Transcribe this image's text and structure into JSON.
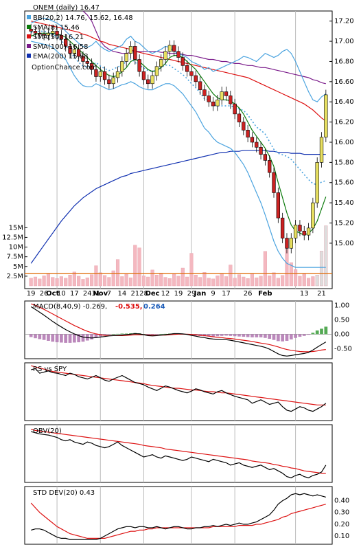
{
  "colors": {
    "bb": "#4aa3df",
    "sma8": "#0a7a0a",
    "sma50": "#dd1111",
    "sma100": "#7a1a8a",
    "ema200": "#1030b0",
    "price_down": "#cc2222",
    "price_up": "#e8e060",
    "volume": "#f4b8c0",
    "macd_neg": "#dd1111",
    "macd_pos": "#1a5bb8"
  },
  "chart_data": [
    {
      "type": "line",
      "title": "ONEM (daily) 16.47",
      "watermark": "OptionChance.com",
      "legend": [
        {
          "name": "BB(20,2) 14.76, 15.62, 16.48",
          "color": "#4aa3df"
        },
        {
          "name": "SMA(8) 15.46",
          "color": "#0a7a0a"
        },
        {
          "name": "SMA(50) 16.21",
          "color": "#dd1111"
        },
        {
          "name": "SMA(100) 16.58",
          "color": "#7a1a8a"
        },
        {
          "name": "EMA(200) 15.88",
          "color": "#1030b0"
        }
      ],
      "ylim": [
        14.55,
        17.3
      ],
      "yticks": [
        "17.20",
        "17.00",
        "16.80",
        "16.60",
        "16.40",
        "16.20",
        "16.00",
        "15.80",
        "15.60",
        "15.40",
        "15.20",
        "15.00"
      ],
      "xticks": [
        "19",
        "26",
        "Oct",
        "10",
        "17",
        "24",
        "31",
        "Nov",
        "7",
        "14",
        "21",
        "28",
        "Dec",
        "12",
        "19",
        "29",
        "Jan",
        "9",
        "17",
        "26",
        "Feb",
        "13",
        "21"
      ],
      "volume_ticks": [
        "15M",
        "12.5M",
        "10M",
        "7.5M",
        "5M",
        "2.5M"
      ],
      "close": [
        17.1,
        17.08,
        17.07,
        17.06,
        17.08,
        17.1,
        17.06,
        17.02,
        16.95,
        16.88,
        16.92,
        16.85,
        16.8,
        16.78,
        16.72,
        16.65,
        16.7,
        16.62,
        16.58,
        16.64,
        16.7,
        16.8,
        16.88,
        16.95,
        16.82,
        16.7,
        16.62,
        16.58,
        16.66,
        16.75,
        16.82,
        16.9,
        16.96,
        16.9,
        16.84,
        16.76,
        16.7,
        16.66,
        16.6,
        16.52,
        16.46,
        16.4,
        16.36,
        16.42,
        16.5,
        16.46,
        16.38,
        16.28,
        16.2,
        16.12,
        16.05,
        16.0,
        15.95,
        15.88,
        15.82,
        15.7,
        15.5,
        15.25,
        15.05,
        14.95,
        15.05,
        15.18,
        15.12,
        15.08,
        15.15,
        15.4,
        15.8,
        16.05,
        16.47
      ],
      "bb_upper": [
        17.18,
        17.2,
        17.22,
        17.23,
        17.22,
        17.2,
        17.18,
        17.15,
        17.1,
        17.06,
        17.02,
        16.98,
        16.95,
        16.94,
        16.96,
        17.0,
        16.95,
        16.92,
        16.9,
        16.92,
        16.94,
        16.96,
        17.02,
        17.05,
        17.0,
        16.98,
        16.94,
        16.9,
        16.88,
        16.9,
        16.92,
        16.95,
        16.94,
        16.9,
        16.88,
        16.86,
        16.84,
        16.8,
        16.78,
        16.76,
        16.72,
        16.74,
        16.7,
        16.72,
        16.74,
        16.76,
        16.78,
        16.8,
        16.82,
        16.85,
        16.84,
        16.82,
        16.8,
        16.84,
        16.88,
        16.86,
        16.84,
        16.86,
        16.9,
        16.92,
        16.88,
        16.8,
        16.7,
        16.6,
        16.5,
        16.42,
        16.4,
        16.45,
        16.48
      ],
      "bb_lower": [
        17.0,
        16.99,
        16.98,
        16.97,
        16.96,
        16.94,
        16.9,
        16.86,
        16.82,
        16.74,
        16.66,
        16.6,
        16.56,
        16.55,
        16.55,
        16.58,
        16.56,
        16.54,
        16.52,
        16.53,
        16.55,
        16.57,
        16.58,
        16.6,
        16.58,
        16.55,
        16.53,
        16.52,
        16.52,
        16.54,
        16.56,
        16.58,
        16.58,
        16.56,
        16.52,
        16.48,
        16.42,
        16.36,
        16.3,
        16.22,
        16.14,
        16.1,
        16.04,
        16.0,
        15.98,
        15.96,
        15.94,
        15.9,
        15.84,
        15.78,
        15.7,
        15.6,
        15.5,
        15.4,
        15.28,
        15.15,
        15.02,
        14.92,
        14.85,
        14.8,
        14.78,
        14.76,
        14.76,
        14.76,
        14.76,
        14.76,
        14.76,
        14.76,
        14.76
      ],
      "sma8": [
        17.05,
        17.07,
        17.08,
        17.08,
        17.08,
        17.08,
        17.07,
        17.06,
        17.04,
        17.0,
        16.96,
        16.92,
        16.88,
        16.84,
        16.8,
        16.76,
        16.72,
        16.69,
        16.66,
        16.65,
        16.66,
        16.7,
        16.74,
        16.8,
        16.82,
        16.8,
        16.76,
        16.72,
        16.7,
        16.71,
        16.74,
        16.78,
        16.84,
        16.86,
        16.86,
        16.84,
        16.8,
        16.76,
        16.72,
        16.66,
        16.6,
        16.54,
        16.48,
        16.44,
        16.42,
        16.42,
        16.41,
        16.38,
        16.34,
        16.28,
        16.2,
        16.12,
        16.06,
        16.0,
        15.94,
        15.86,
        15.76,
        15.6,
        15.45,
        15.3,
        15.18,
        15.12,
        15.1,
        15.08,
        15.1,
        15.14,
        15.22,
        15.34,
        15.46
      ],
      "sma50": [
        17.2,
        17.19,
        17.18,
        17.17,
        17.16,
        17.15,
        17.14,
        17.13,
        17.12,
        17.11,
        17.1,
        17.09,
        17.07,
        17.06,
        17.04,
        17.02,
        17.0,
        16.99,
        16.97,
        16.96,
        16.95,
        16.94,
        16.93,
        16.92,
        16.9,
        16.89,
        16.88,
        16.87,
        16.86,
        16.85,
        16.84,
        16.83,
        16.82,
        16.81,
        16.8,
        16.79,
        16.78,
        16.77,
        16.76,
        16.75,
        16.74,
        16.73,
        16.72,
        16.71,
        16.7,
        16.69,
        16.68,
        16.67,
        16.66,
        16.65,
        16.64,
        16.62,
        16.6,
        16.58,
        16.56,
        16.54,
        16.52,
        16.5,
        16.48,
        16.46,
        16.44,
        16.42,
        16.4,
        16.38,
        16.35,
        16.32,
        16.28,
        16.24,
        16.21
      ],
      "sma100": [
        null,
        null,
        null,
        null,
        null,
        null,
        null,
        null,
        null,
        null,
        null,
        null,
        17.3,
        17.26,
        17.2,
        17.1,
        17.0,
        16.95,
        16.92,
        16.9,
        16.89,
        16.88,
        16.88,
        16.89,
        16.9,
        16.9,
        16.9,
        16.9,
        16.9,
        16.9,
        16.89,
        16.89,
        16.88,
        16.88,
        16.88,
        16.87,
        16.86,
        16.86,
        16.85,
        16.84,
        16.83,
        16.82,
        16.82,
        16.81,
        16.8,
        16.8,
        16.79,
        16.78,
        16.78,
        16.77,
        16.76,
        16.76,
        16.75,
        16.74,
        16.74,
        16.73,
        16.72,
        16.71,
        16.7,
        16.69,
        16.68,
        16.67,
        16.66,
        16.65,
        16.64,
        16.62,
        16.61,
        16.59,
        16.58
      ],
      "ema200": [
        14.8,
        14.86,
        14.92,
        14.98,
        15.04,
        15.1,
        15.16,
        15.22,
        15.27,
        15.32,
        15.37,
        15.41,
        15.45,
        15.48,
        15.51,
        15.54,
        15.56,
        15.58,
        15.6,
        15.62,
        15.64,
        15.66,
        15.67,
        15.69,
        15.7,
        15.71,
        15.72,
        15.73,
        15.74,
        15.75,
        15.76,
        15.77,
        15.78,
        15.79,
        15.8,
        15.81,
        15.82,
        15.83,
        15.84,
        15.85,
        15.86,
        15.87,
        15.88,
        15.89,
        15.9,
        15.9,
        15.91,
        15.91,
        15.91,
        15.92,
        15.92,
        15.92,
        15.92,
        15.92,
        15.92,
        15.91,
        15.91,
        15.9,
        15.9,
        15.9,
        15.89,
        15.89,
        15.89,
        15.88,
        15.88,
        15.88,
        15.88,
        15.88,
        15.88
      ],
      "volume": [
        2.0,
        2.3,
        1.8,
        2.6,
        3.1,
        2.2,
        1.9,
        2.4,
        2.0,
        2.8,
        3.6,
        2.5,
        1.7,
        2.1,
        2.9,
        5.2,
        3.4,
        2.7,
        2.2,
        3.9,
        6.8,
        2.4,
        3.0,
        2.1,
        10.5,
        9.8,
        2.6,
        2.3,
        4.1,
        2.8,
        3.3,
        2.2,
        1.9,
        3.0,
        2.5,
        4.6,
        2.3,
        8.4,
        2.8,
        2.2,
        3.5,
        2.0,
        1.8,
        2.6,
        3.1,
        2.4,
        5.4,
        2.0,
        2.9,
        2.3,
        1.9,
        3.2,
        2.1,
        2.5,
        8.9,
        2.6,
        3.4,
        2.0,
        2.7,
        11.5,
        6.0,
        4.2,
        2.5,
        3.1,
        2.0,
        2.4,
        2.8,
        9.0,
        15.5
      ],
      "volume_avg": 3.2
    },
    {
      "type": "line",
      "title": "MACD(8,40,9) -0.269,",
      "values_text": [
        "-0.535,",
        "0.264"
      ],
      "ylim": [
        -0.85,
        1.15
      ],
      "yticks": [
        "1.00",
        "0.50",
        "0.00",
        "-0.50"
      ],
      "macd": [
        0.95,
        0.86,
        0.76,
        0.66,
        0.55,
        0.44,
        0.34,
        0.25,
        0.16,
        0.08,
        0.01,
        -0.05,
        -0.1,
        -0.12,
        -0.13,
        -0.12,
        -0.1,
        -0.08,
        -0.06,
        -0.05,
        -0.04,
        -0.03,
        -0.02,
        0.0,
        0.02,
        0.01,
        -0.02,
        -0.05,
        -0.06,
        -0.05,
        -0.03,
        -0.02,
        0.0,
        0.02,
        0.02,
        0.01,
        -0.01,
        -0.04,
        -0.07,
        -0.1,
        -0.12,
        -0.15,
        -0.17,
        -0.18,
        -0.18,
        -0.19,
        -0.21,
        -0.24,
        -0.27,
        -0.3,
        -0.33,
        -0.36,
        -0.39,
        -0.42,
        -0.46,
        -0.52,
        -0.6,
        -0.68,
        -0.74,
        -0.76,
        -0.74,
        -0.71,
        -0.69,
        -0.67,
        -0.63,
        -0.55,
        -0.45,
        -0.36,
        -0.27
      ],
      "signal": [
        1.05,
        1.0,
        0.93,
        0.86,
        0.78,
        0.7,
        0.62,
        0.54,
        0.46,
        0.38,
        0.3,
        0.23,
        0.16,
        0.1,
        0.05,
        0.01,
        -0.02,
        -0.04,
        -0.05,
        -0.05,
        -0.05,
        -0.05,
        -0.04,
        -0.03,
        -0.02,
        -0.02,
        -0.02,
        -0.03,
        -0.03,
        -0.04,
        -0.03,
        -0.03,
        -0.02,
        -0.01,
        0.0,
        0.0,
        0.0,
        -0.01,
        -0.02,
        -0.04,
        -0.05,
        -0.07,
        -0.09,
        -0.11,
        -0.12,
        -0.14,
        -0.15,
        -0.17,
        -0.19,
        -0.21,
        -0.23,
        -0.25,
        -0.28,
        -0.31,
        -0.33,
        -0.36,
        -0.4,
        -0.44,
        -0.49,
        -0.53,
        -0.56,
        -0.58,
        -0.6,
        -0.61,
        -0.61,
        -0.6,
        -0.58,
        -0.55,
        -0.53
      ]
    },
    {
      "type": "line",
      "title": "RS vs SPY",
      "ylim": [
        0,
        1
      ],
      "rs": [
        0.88,
        0.9,
        0.82,
        0.84,
        0.86,
        0.83,
        0.82,
        0.8,
        0.78,
        0.82,
        0.8,
        0.76,
        0.74,
        0.72,
        0.75,
        0.78,
        0.74,
        0.7,
        0.68,
        0.72,
        0.75,
        0.78,
        0.74,
        0.7,
        0.66,
        0.64,
        0.62,
        0.58,
        0.55,
        0.52,
        0.56,
        0.6,
        0.58,
        0.55,
        0.52,
        0.5,
        0.48,
        0.51,
        0.55,
        0.53,
        0.5,
        0.48,
        0.46,
        0.5,
        0.52,
        0.48,
        0.45,
        0.42,
        0.4,
        0.38,
        0.36,
        0.3,
        0.33,
        0.36,
        0.32,
        0.28,
        0.3,
        0.32,
        0.24,
        0.18,
        0.16,
        0.2,
        0.24,
        0.22,
        0.18,
        0.16,
        0.2,
        0.24,
        0.3
      ],
      "rs_ma": [
        0.95,
        0.93,
        0.91,
        0.89,
        0.87,
        0.85,
        0.84,
        0.83,
        0.82,
        0.81,
        0.8,
        0.79,
        0.78,
        0.77,
        0.76,
        0.75,
        0.74,
        0.73,
        0.72,
        0.71,
        0.7,
        0.69,
        0.68,
        0.67,
        0.66,
        0.65,
        0.64,
        0.62,
        0.61,
        0.6,
        0.59,
        0.58,
        0.57,
        0.56,
        0.56,
        0.55,
        0.54,
        0.53,
        0.53,
        0.52,
        0.51,
        0.5,
        0.5,
        0.49,
        0.48,
        0.48,
        0.47,
        0.46,
        0.45,
        0.44,
        0.43,
        0.42,
        0.41,
        0.4,
        0.39,
        0.38,
        0.37,
        0.36,
        0.35,
        0.34,
        0.33,
        0.32,
        0.31,
        0.3,
        0.29,
        0.28,
        0.27,
        0.27,
        0.27
      ]
    },
    {
      "type": "line",
      "title": "OBV(20)",
      "ylim": [
        0,
        1
      ],
      "obv": [
        0.88,
        0.86,
        0.84,
        0.83,
        0.82,
        0.8,
        0.78,
        0.74,
        0.72,
        0.74,
        0.7,
        0.68,
        0.66,
        0.7,
        0.68,
        0.64,
        0.62,
        0.6,
        0.62,
        0.66,
        0.7,
        0.64,
        0.6,
        0.56,
        0.52,
        0.48,
        0.44,
        0.46,
        0.48,
        0.44,
        0.42,
        0.46,
        0.44,
        0.42,
        0.4,
        0.38,
        0.4,
        0.44,
        0.42,
        0.4,
        0.38,
        0.36,
        0.4,
        0.38,
        0.36,
        0.34,
        0.3,
        0.32,
        0.34,
        0.3,
        0.28,
        0.26,
        0.28,
        0.3,
        0.26,
        0.22,
        0.24,
        0.2,
        0.16,
        0.1,
        0.08,
        0.12,
        0.14,
        0.1,
        0.08,
        0.12,
        0.14,
        0.18,
        0.3
      ],
      "obv_ma": [
        0.92,
        0.9,
        0.89,
        0.88,
        0.87,
        0.86,
        0.85,
        0.84,
        0.83,
        0.82,
        0.81,
        0.8,
        0.79,
        0.78,
        0.77,
        0.76,
        0.75,
        0.74,
        0.73,
        0.72,
        0.71,
        0.7,
        0.69,
        0.68,
        0.67,
        0.66,
        0.64,
        0.63,
        0.62,
        0.61,
        0.6,
        0.58,
        0.57,
        0.56,
        0.55,
        0.54,
        0.53,
        0.52,
        0.51,
        0.5,
        0.49,
        0.48,
        0.47,
        0.46,
        0.45,
        0.44,
        0.43,
        0.42,
        0.41,
        0.4,
        0.39,
        0.37,
        0.36,
        0.35,
        0.34,
        0.33,
        0.31,
        0.3,
        0.28,
        0.27,
        0.25,
        0.24,
        0.22,
        0.2,
        0.19,
        0.18,
        0.17,
        0.16,
        0.16
      ]
    },
    {
      "type": "line",
      "title": "STD DEV(20) 0.43",
      "ylim": [
        0.03,
        0.52
      ],
      "yticks": [
        "0.40",
        "0.30",
        "0.20",
        "0.10"
      ],
      "stddev": [
        0.15,
        0.16,
        0.16,
        0.15,
        0.13,
        0.11,
        0.09,
        0.08,
        0.08,
        0.07,
        0.07,
        0.07,
        0.07,
        0.07,
        0.07,
        0.07,
        0.08,
        0.1,
        0.12,
        0.14,
        0.16,
        0.17,
        0.18,
        0.18,
        0.17,
        0.18,
        0.18,
        0.17,
        0.17,
        0.18,
        0.17,
        0.16,
        0.17,
        0.18,
        0.18,
        0.17,
        0.16,
        0.16,
        0.17,
        0.17,
        0.18,
        0.18,
        0.19,
        0.18,
        0.19,
        0.2,
        0.19,
        0.2,
        0.21,
        0.2,
        0.2,
        0.21,
        0.22,
        0.24,
        0.26,
        0.28,
        0.32,
        0.37,
        0.4,
        0.42,
        0.45,
        0.46,
        0.45,
        0.46,
        0.45,
        0.44,
        0.45,
        0.44,
        0.43
      ],
      "stddev_ma": [
        0.38,
        0.34,
        0.3,
        0.27,
        0.24,
        0.21,
        0.18,
        0.16,
        0.14,
        0.12,
        0.11,
        0.1,
        0.09,
        0.08,
        0.08,
        0.08,
        0.08,
        0.08,
        0.09,
        0.1,
        0.11,
        0.12,
        0.13,
        0.14,
        0.14,
        0.15,
        0.15,
        0.16,
        0.16,
        0.17,
        0.17,
        0.17,
        0.17,
        0.17,
        0.17,
        0.17,
        0.17,
        0.17,
        0.17,
        0.17,
        0.17,
        0.17,
        0.18,
        0.18,
        0.18,
        0.18,
        0.18,
        0.18,
        0.19,
        0.19,
        0.19,
        0.19,
        0.2,
        0.2,
        0.21,
        0.22,
        0.23,
        0.24,
        0.26,
        0.27,
        0.29,
        0.3,
        0.31,
        0.32,
        0.33,
        0.34,
        0.35,
        0.36,
        0.37
      ]
    }
  ]
}
